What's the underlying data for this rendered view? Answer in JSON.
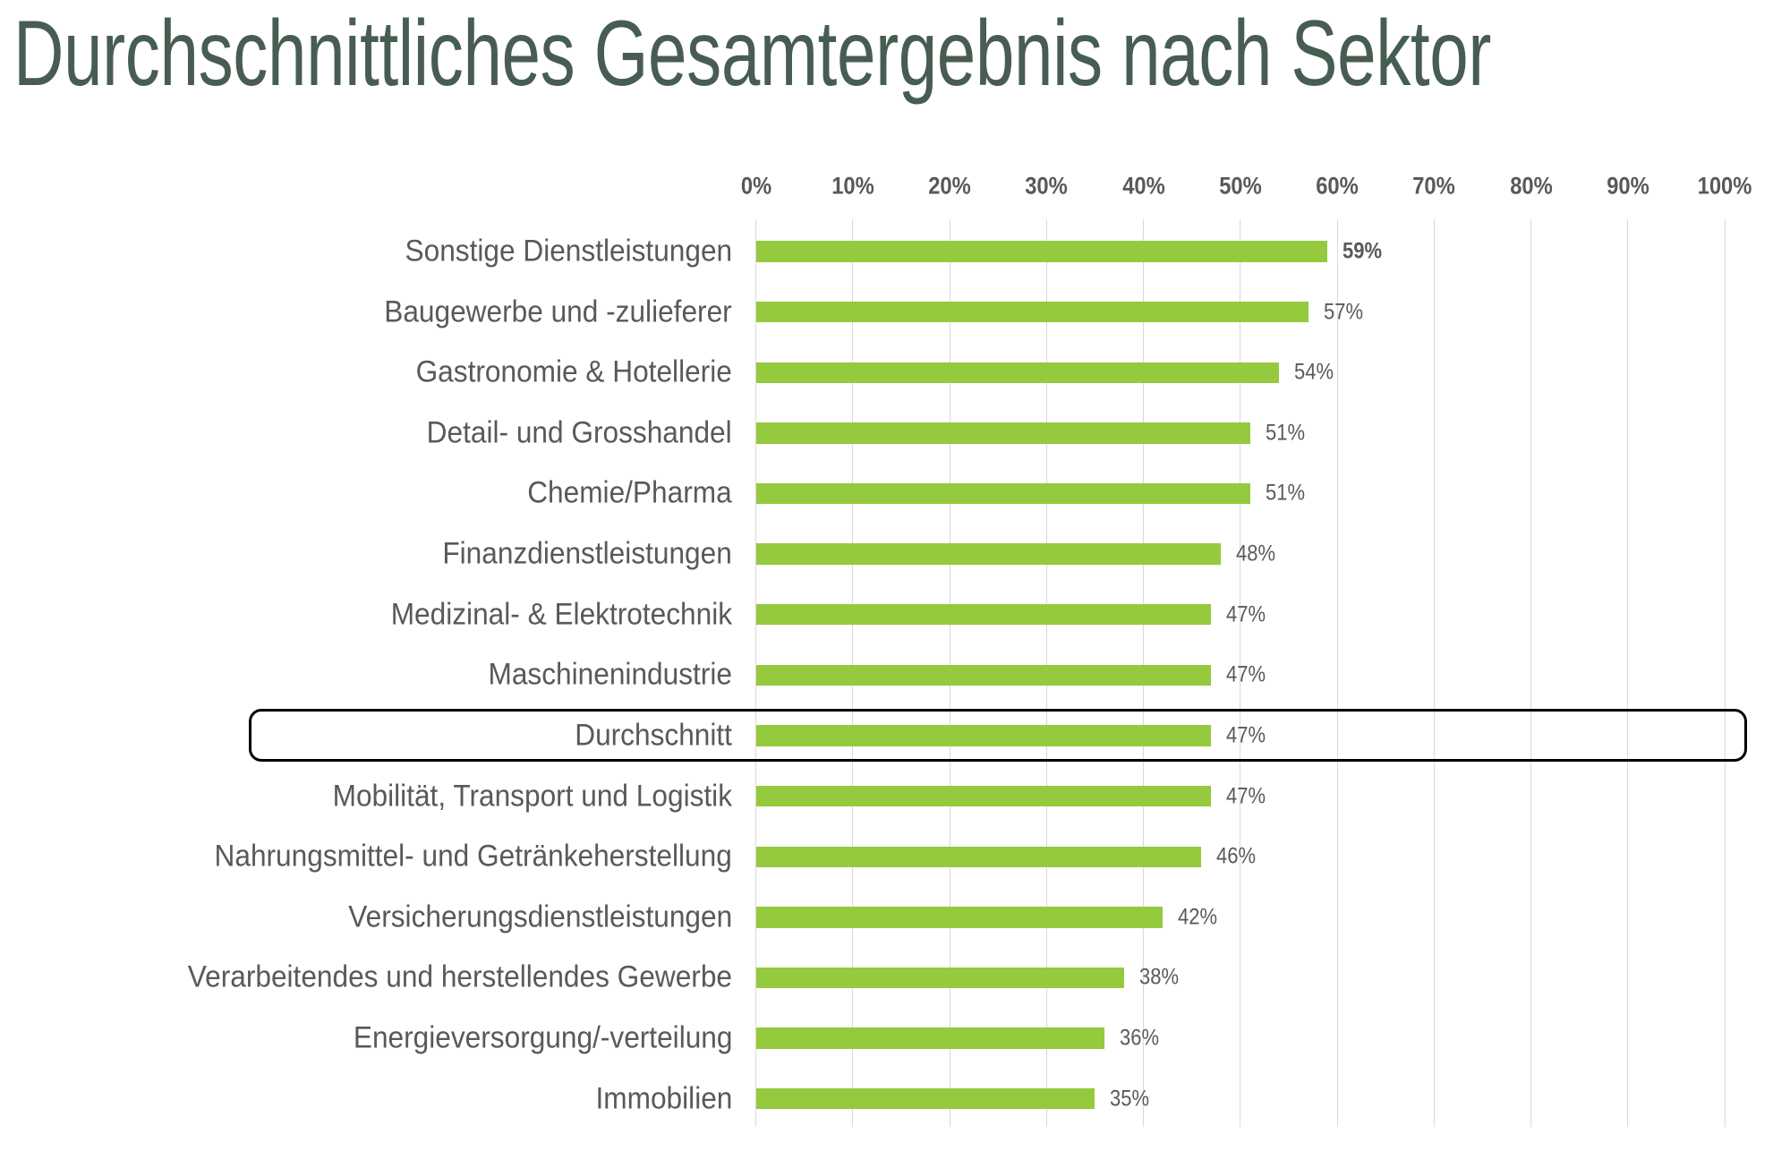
{
  "title": "Durchschnittliches Gesamtergebnis nach Sektor",
  "chart_data": {
    "type": "bar",
    "orientation": "horizontal",
    "title": "Durchschnittliches Gesamtergebnis nach Sektor",
    "categories": [
      "Sonstige Dienstleistungen",
      "Baugewerbe und -zulieferer",
      "Gastronomie & Hotellerie",
      "Detail- und Grosshandel",
      "Chemie/Pharma",
      "Finanzdienstleistungen",
      "Medizinal- & Elektrotechnik",
      "Maschinenindustrie",
      "Durchschnitt",
      "Mobilität, Transport und Logistik",
      "Nahrungsmittel- und Getränkeherstellung",
      "Versicherungsdienstleistungen",
      "Verarbeitendes und herstellendes Gewerbe",
      "Energieversorgung/-verteilung",
      "Immobilien"
    ],
    "values": [
      59,
      57,
      54,
      51,
      51,
      48,
      47,
      47,
      47,
      47,
      46,
      42,
      38,
      36,
      35
    ],
    "value_labels": [
      "59%",
      "57%",
      "54%",
      "51%",
      "51%",
      "48%",
      "47%",
      "47%",
      "47%",
      "47%",
      "46%",
      "42%",
      "38%",
      "36%",
      "35%"
    ],
    "bold_value_index": 0,
    "highlighted_category": "Durchschnitt",
    "highlight_index": 8,
    "x_ticks": [
      "0%",
      "10%",
      "20%",
      "30%",
      "40%",
      "50%",
      "60%",
      "70%",
      "80%",
      "90%",
      "100%"
    ],
    "xlim": [
      0,
      100
    ],
    "xlabel": "",
    "ylabel": "",
    "grid": true,
    "legend": false,
    "colors": {
      "bar": "#95C93E",
      "gridline": "#D9D9D9",
      "title_text": "#485D52",
      "axis_text": "#595959",
      "category_text": "#595959",
      "value_text": "#595959",
      "highlight_border": "#000000",
      "background": "#FFFFFF"
    }
  }
}
